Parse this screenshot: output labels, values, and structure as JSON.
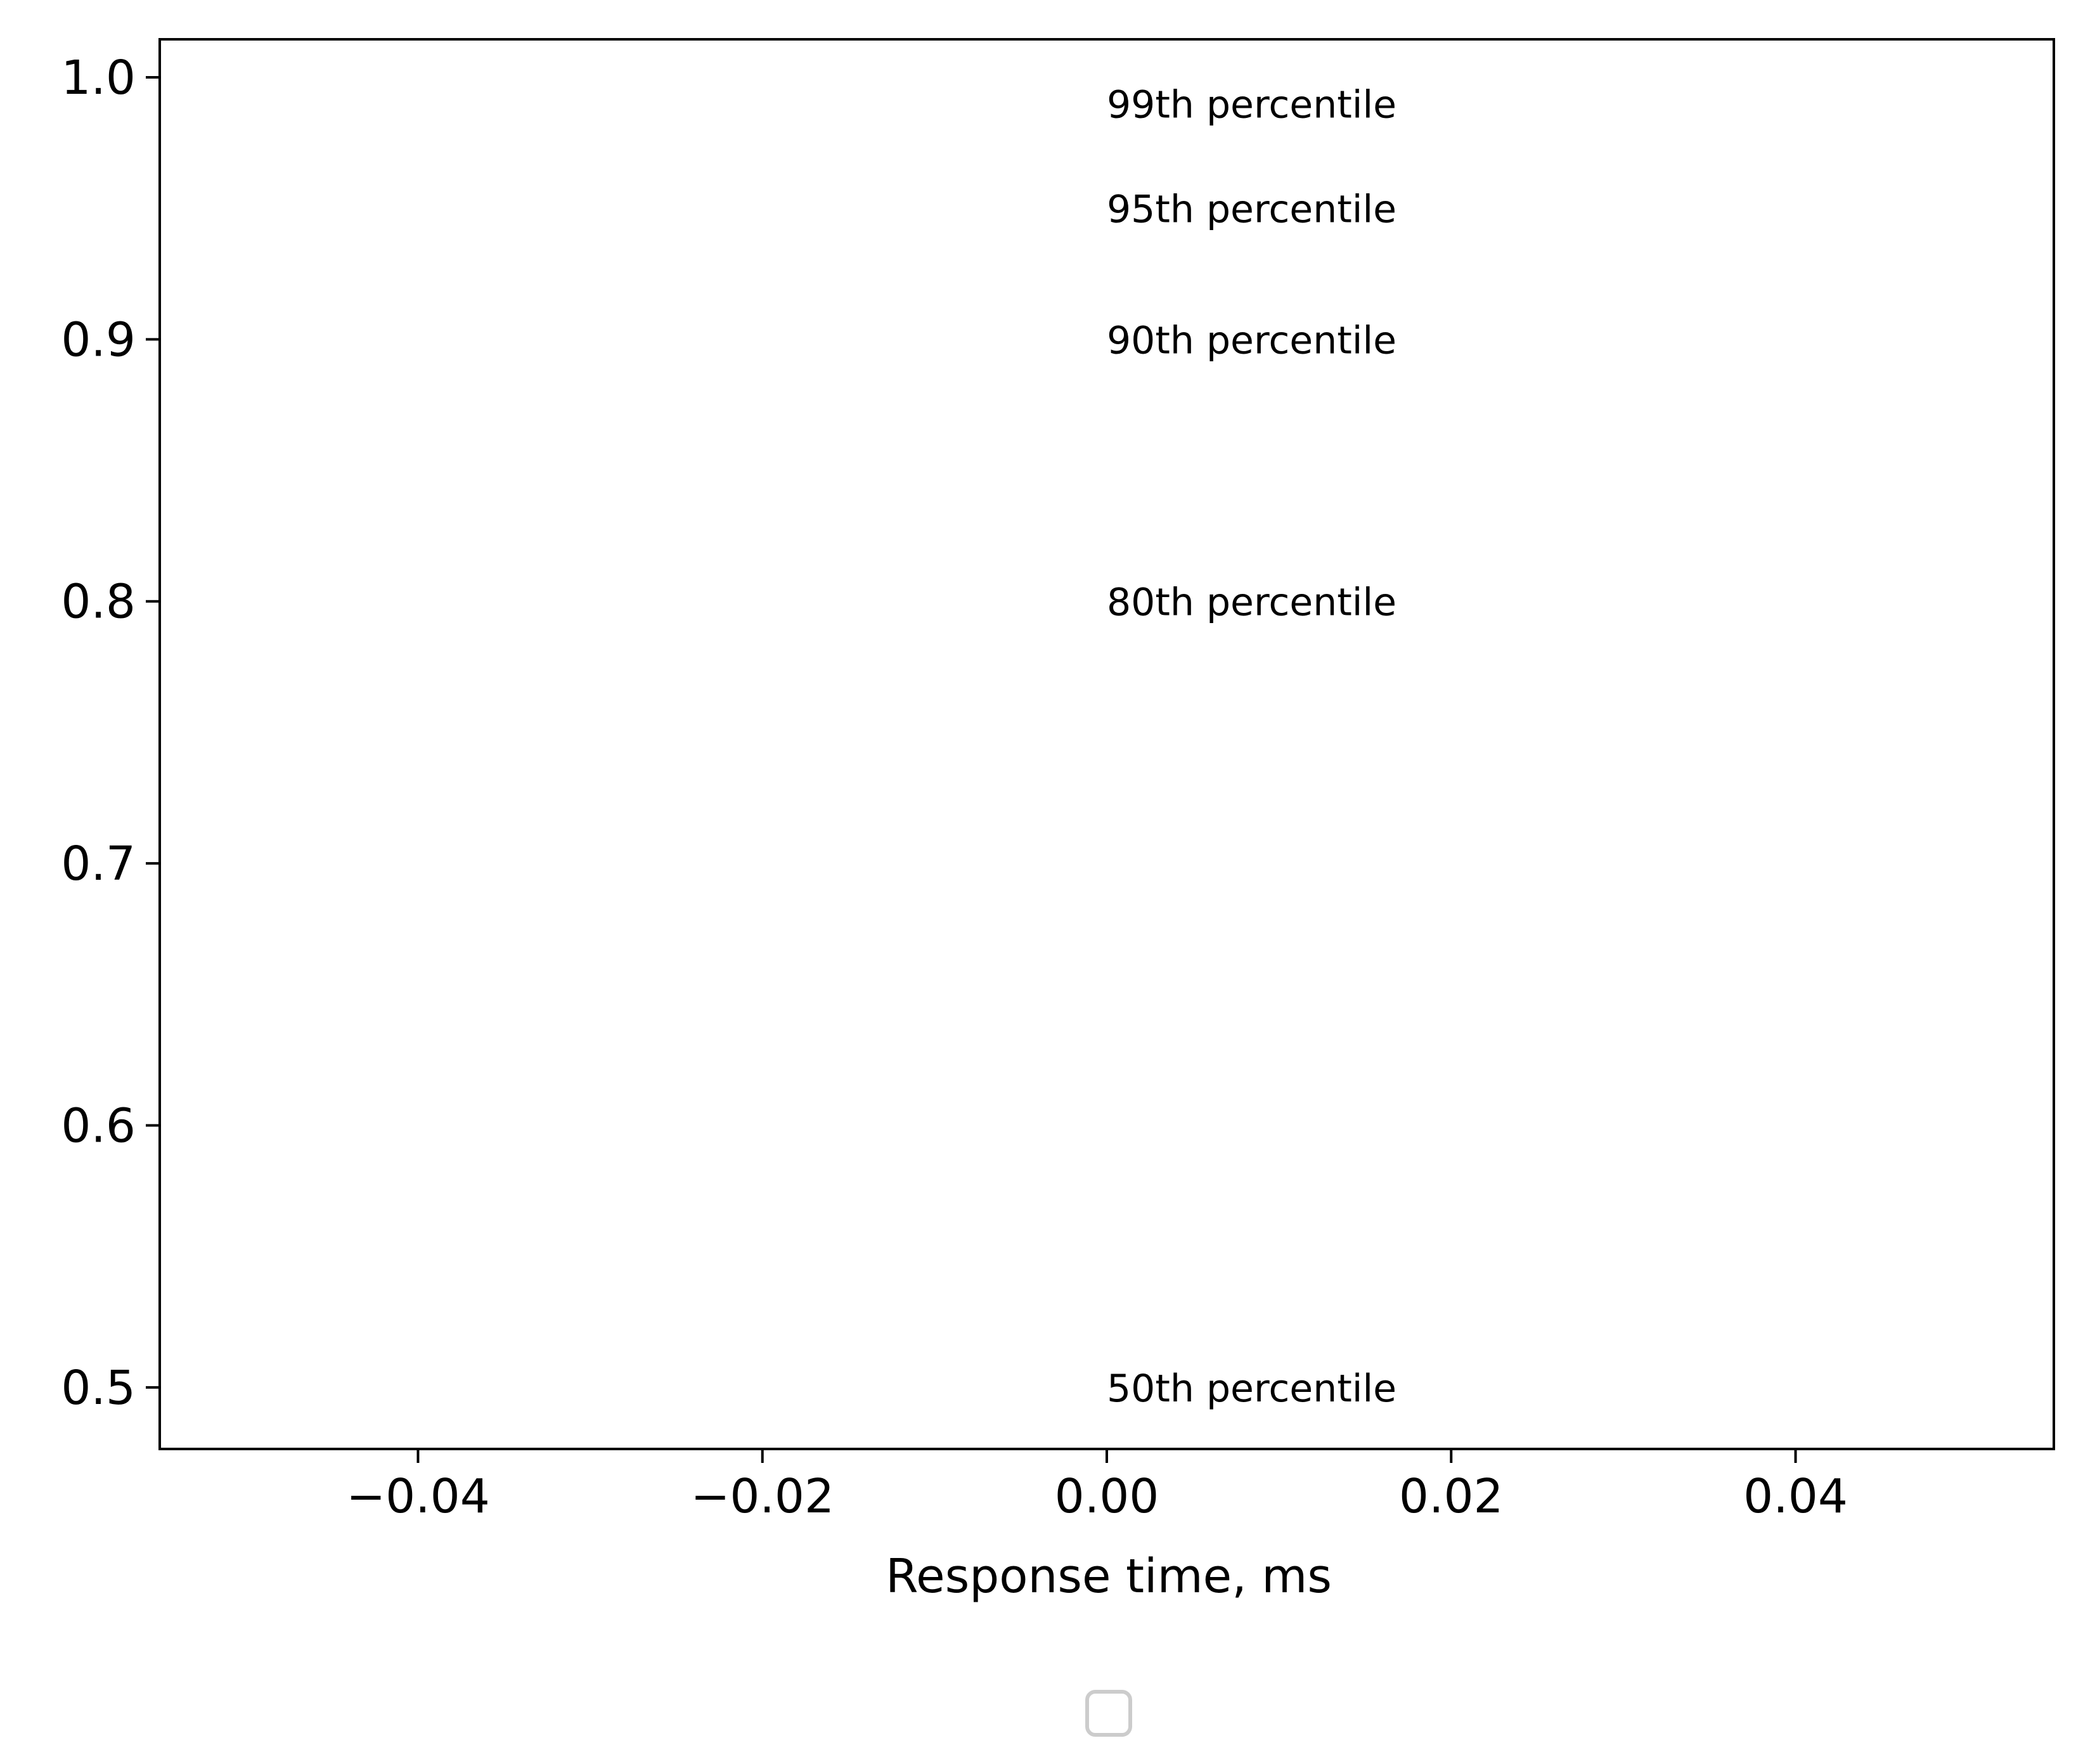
{
  "chart_data": {
    "type": "line",
    "title": "",
    "xlabel": "Response time, ms",
    "ylabel": "",
    "xlim": [
      -0.055,
      0.055
    ],
    "ylim": [
      0.4765,
      1.0145
    ],
    "xticks": [
      -0.04,
      -0.02,
      0.0,
      0.02,
      0.04
    ],
    "xtick_labels": [
      "−0.04",
      "−0.02",
      "0.00",
      "0.02",
      "0.04"
    ],
    "yticks": [
      0.5,
      0.6,
      0.7,
      0.8,
      0.9,
      1.0
    ],
    "ytick_labels": [
      "0.5",
      "0.6",
      "0.7",
      "0.8",
      "0.9",
      "1.0"
    ],
    "series": [],
    "annotations": [
      {
        "x": 0.0,
        "y": 0.99,
        "text": "99th percentile"
      },
      {
        "x": 0.0,
        "y": 0.95,
        "text": "95th percentile"
      },
      {
        "x": 0.0,
        "y": 0.9,
        "text": "90th percentile"
      },
      {
        "x": 0.0,
        "y": 0.8,
        "text": "80th percentile"
      },
      {
        "x": 0.0,
        "y": 0.5,
        "text": "50th percentile"
      }
    ],
    "grid": false,
    "legend": {
      "placement": "lower-center-outside",
      "entries": []
    }
  }
}
